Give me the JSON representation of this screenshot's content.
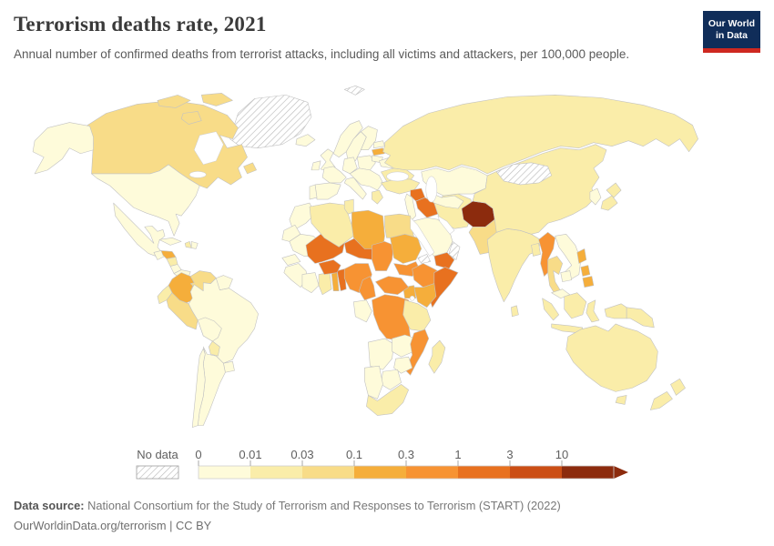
{
  "header": {
    "title": "Terrorism deaths rate, 2021",
    "subtitle": "Annual number of confirmed deaths from terrorist attacks, including all victims and attackers, per 100,000 people.",
    "logo": {
      "line1": "Our World",
      "line2": "in Data",
      "bg_color": "#102D59",
      "accent_color": "#CE2820",
      "text_color": "#ffffff"
    }
  },
  "legend": {
    "no_data_label": "No data",
    "ticks": [
      "0",
      "0.01",
      "0.03",
      "0.1",
      "0.3",
      "1",
      "3",
      "10"
    ],
    "bin_ranges": [
      "0–0.01",
      "0.01–0.03",
      "0.03–0.1",
      "0.1–0.3",
      "0.3–1",
      "1–3",
      "3–10",
      "10+"
    ],
    "palette": [
      "#FEFBDA",
      "#FAEDA9",
      "#F8DC88",
      "#F5AE3B",
      "#F79333",
      "#E8711F",
      "#CB4E15",
      "#8C2B0D"
    ],
    "no_data_pattern": "diagonal-hatch",
    "tick_color": "#5f5f5f",
    "border_color": "#c2c2c2"
  },
  "footer": {
    "source_label": "Data source:",
    "source_text": "National Consortium for the Study of Terrorism and Responses to Terrorism (START) (2022)",
    "license_line": "OurWorldinData.org/terrorism | CC BY"
  },
  "chart_data": {
    "type": "heatmap",
    "subtype": "choropleth_world_map",
    "title": "Terrorism deaths rate, 2021",
    "unit": "deaths per 100,000 people",
    "legend_ticks": [
      0,
      0.01,
      0.03,
      0.1,
      0.3,
      1,
      3,
      10
    ],
    "scale": "log-binned",
    "no_data_bin": 0,
    "regions": [
      {
        "id": "greenland",
        "name": "Greenland",
        "bin": 0
      },
      {
        "id": "svalbard",
        "name": "Svalbard",
        "bin": 0
      },
      {
        "id": "mongolia",
        "name": "Mongolia",
        "bin": 0
      },
      {
        "id": "oman",
        "name": "Oman",
        "bin": 0
      },
      {
        "id": "eritrea",
        "name": "Eritrea",
        "bin": 0
      },
      {
        "id": "canada",
        "name": "Canada",
        "bin": 3
      },
      {
        "id": "united-states",
        "name": "United States",
        "bin": 1
      },
      {
        "id": "mexico",
        "name": "Mexico",
        "bin": 1
      },
      {
        "id": "guatemala",
        "name": "Guatemala",
        "bin": 1
      },
      {
        "id": "honduras",
        "name": "Honduras",
        "bin": 4
      },
      {
        "id": "nicaragua",
        "name": "Nicaragua",
        "bin": 2
      },
      {
        "id": "costa-rica",
        "name": "Costa Rica",
        "bin": 1
      },
      {
        "id": "panama",
        "name": "Panama",
        "bin": 1
      },
      {
        "id": "cuba",
        "name": "Cuba",
        "bin": 1
      },
      {
        "id": "haiti",
        "name": "Haiti",
        "bin": 2
      },
      {
        "id": "dominican-republic",
        "name": "Dominican Republic",
        "bin": 1
      },
      {
        "id": "colombia",
        "name": "Colombia",
        "bin": 4
      },
      {
        "id": "venezuela",
        "name": "Venezuela",
        "bin": 3
      },
      {
        "id": "guyana",
        "name": "Guyana & Suriname",
        "bin": 1
      },
      {
        "id": "ecuador",
        "name": "Ecuador",
        "bin": 2
      },
      {
        "id": "peru",
        "name": "Peru",
        "bin": 3
      },
      {
        "id": "brazil",
        "name": "Brazil",
        "bin": 1
      },
      {
        "id": "bolivia",
        "name": "Bolivia",
        "bin": 1
      },
      {
        "id": "paraguay",
        "name": "Paraguay",
        "bin": 2
      },
      {
        "id": "uruguay",
        "name": "Uruguay",
        "bin": 1
      },
      {
        "id": "argentina",
        "name": "Argentina",
        "bin": 1
      },
      {
        "id": "chile",
        "name": "Chile",
        "bin": 1
      },
      {
        "id": "iceland",
        "name": "Iceland",
        "bin": 1
      },
      {
        "id": "united-kingdom",
        "name": "United Kingdom",
        "bin": 1
      },
      {
        "id": "ireland",
        "name": "Ireland",
        "bin": 1
      },
      {
        "id": "norway",
        "name": "Norway",
        "bin": 1
      },
      {
        "id": "sweden",
        "name": "Sweden",
        "bin": 1
      },
      {
        "id": "finland",
        "name": "Finland",
        "bin": 1
      },
      {
        "id": "france",
        "name": "France",
        "bin": 1
      },
      {
        "id": "germany",
        "name": "Germany",
        "bin": 1
      },
      {
        "id": "poland",
        "name": "Poland",
        "bin": 1
      },
      {
        "id": "spain",
        "name": "Spain",
        "bin": 1
      },
      {
        "id": "portugal",
        "name": "Portugal",
        "bin": 1
      },
      {
        "id": "italy",
        "name": "Italy",
        "bin": 1
      },
      {
        "id": "europe-other",
        "name": "Central & Southeast Europe",
        "bin": 1
      },
      {
        "id": "greece",
        "name": "Greece",
        "bin": 2
      },
      {
        "id": "latvia",
        "name": "Latvia",
        "bin": 4
      },
      {
        "id": "belarus",
        "name": "Belarus",
        "bin": 1
      },
      {
        "id": "ukraine",
        "name": "Ukraine",
        "bin": 2
      },
      {
        "id": "russia",
        "name": "Russia",
        "bin": 2
      },
      {
        "id": "turkey",
        "name": "Turkey",
        "bin": 2
      },
      {
        "id": "syria",
        "name": "Syria",
        "bin": 6
      },
      {
        "id": "iraq",
        "name": "Iraq",
        "bin": 6
      },
      {
        "id": "jordan",
        "name": "Jordan & Levant",
        "bin": 1
      },
      {
        "id": "iran",
        "name": "Iran",
        "bin": 2
      },
      {
        "id": "saudi-arabia",
        "name": "Saudi Arabia",
        "bin": 1
      },
      {
        "id": "yemen",
        "name": "Yemen",
        "bin": 6
      },
      {
        "id": "kazakhstan",
        "name": "Kazakhstan",
        "bin": 1
      },
      {
        "id": "central-asia",
        "name": "Uzbekistan & Turkmenistan",
        "bin": 1
      },
      {
        "id": "tajikistan",
        "name": "Tajikistan",
        "bin": 5
      },
      {
        "id": "afghanistan",
        "name": "Afghanistan",
        "bin": 8
      },
      {
        "id": "pakistan",
        "name": "Pakistan",
        "bin": 3
      },
      {
        "id": "india",
        "name": "India",
        "bin": 2
      },
      {
        "id": "sri-lanka",
        "name": "Sri Lanka",
        "bin": 2
      },
      {
        "id": "bangladesh",
        "name": "Bangladesh",
        "bin": 2
      },
      {
        "id": "china",
        "name": "China",
        "bin": 2
      },
      {
        "id": "south-korea",
        "name": "South Korea",
        "bin": 1
      },
      {
        "id": "japan",
        "name": "Japan",
        "bin": 2
      },
      {
        "id": "myanmar",
        "name": "Myanmar",
        "bin": 5
      },
      {
        "id": "thailand",
        "name": "Thailand",
        "bin": 3
      },
      {
        "id": "vietnam",
        "name": "Vietnam & Laos",
        "bin": 1
      },
      {
        "id": "cambodia",
        "name": "Cambodia",
        "bin": 1
      },
      {
        "id": "malaysia",
        "name": "Malaysia",
        "bin": 1
      },
      {
        "id": "indonesia",
        "name": "Indonesia",
        "bin": 2
      },
      {
        "id": "philippines",
        "name": "Philippines",
        "bin": 4
      },
      {
        "id": "papua-new-guinea",
        "name": "Papua New Guinea",
        "bin": 2
      },
      {
        "id": "australia",
        "name": "Australia",
        "bin": 2
      },
      {
        "id": "new-zealand",
        "name": "New Zealand",
        "bin": 2
      },
      {
        "id": "morocco",
        "name": "Morocco",
        "bin": 1
      },
      {
        "id": "western-sahara",
        "name": "Western Sahara",
        "bin": 1
      },
      {
        "id": "algeria",
        "name": "Algeria",
        "bin": 2
      },
      {
        "id": "tunisia",
        "name": "Tunisia",
        "bin": 2
      },
      {
        "id": "libya",
        "name": "Libya",
        "bin": 4
      },
      {
        "id": "egypt",
        "name": "Egypt",
        "bin": 3
      },
      {
        "id": "mauritania",
        "name": "Mauritania",
        "bin": 1
      },
      {
        "id": "senegal",
        "name": "Senegal",
        "bin": 1
      },
      {
        "id": "guinea",
        "name": "Guinea & Sierra Leone & Liberia",
        "bin": 1
      },
      {
        "id": "cote-divoire",
        "name": "Cote d'Ivoire",
        "bin": 1
      },
      {
        "id": "ghana",
        "name": "Ghana",
        "bin": 2
      },
      {
        "id": "togo",
        "name": "Togo",
        "bin": 4
      },
      {
        "id": "benin",
        "name": "Benin",
        "bin": 6
      },
      {
        "id": "burkina-faso",
        "name": "Burkina Faso",
        "bin": 6
      },
      {
        "id": "mali",
        "name": "Mali",
        "bin": 6
      },
      {
        "id": "niger",
        "name": "Niger",
        "bin": 6
      },
      {
        "id": "nigeria",
        "name": "Nigeria",
        "bin": 5
      },
      {
        "id": "chad",
        "name": "Chad",
        "bin": 5
      },
      {
        "id": "sudan",
        "name": "Sudan",
        "bin": 4
      },
      {
        "id": "south-sudan",
        "name": "South Sudan",
        "bin": 5
      },
      {
        "id": "ethiopia",
        "name": "Ethiopia",
        "bin": 5
      },
      {
        "id": "somalia",
        "name": "Somalia",
        "bin": 6
      },
      {
        "id": "kenya",
        "name": "Kenya",
        "bin": 4
      },
      {
        "id": "uganda",
        "name": "Uganda",
        "bin": 4
      },
      {
        "id": "cameroon",
        "name": "Cameroon",
        "bin": 5
      },
      {
        "id": "central-african-republic",
        "name": "Central African Republic",
        "bin": 5
      },
      {
        "id": "democratic-republic-of-congo",
        "name": "Democratic Republic of Congo",
        "bin": 5
      },
      {
        "id": "gabon-congo",
        "name": "Gabon & Congo",
        "bin": 1
      },
      {
        "id": "angola",
        "name": "Angola",
        "bin": 1
      },
      {
        "id": "zambia",
        "name": "Zambia",
        "bin": 1
      },
      {
        "id": "tanzania",
        "name": "Tanzania",
        "bin": 2
      },
      {
        "id": "mozambique",
        "name": "Mozambique",
        "bin": 5
      },
      {
        "id": "zimbabwe",
        "name": "Zimbabwe",
        "bin": 1
      },
      {
        "id": "botswana",
        "name": "Botswana",
        "bin": 1
      },
      {
        "id": "namibia",
        "name": "Namibia",
        "bin": 1
      },
      {
        "id": "south-africa",
        "name": "South Africa",
        "bin": 2
      },
      {
        "id": "madagascar",
        "name": "Madagascar",
        "bin": 2
      }
    ]
  }
}
